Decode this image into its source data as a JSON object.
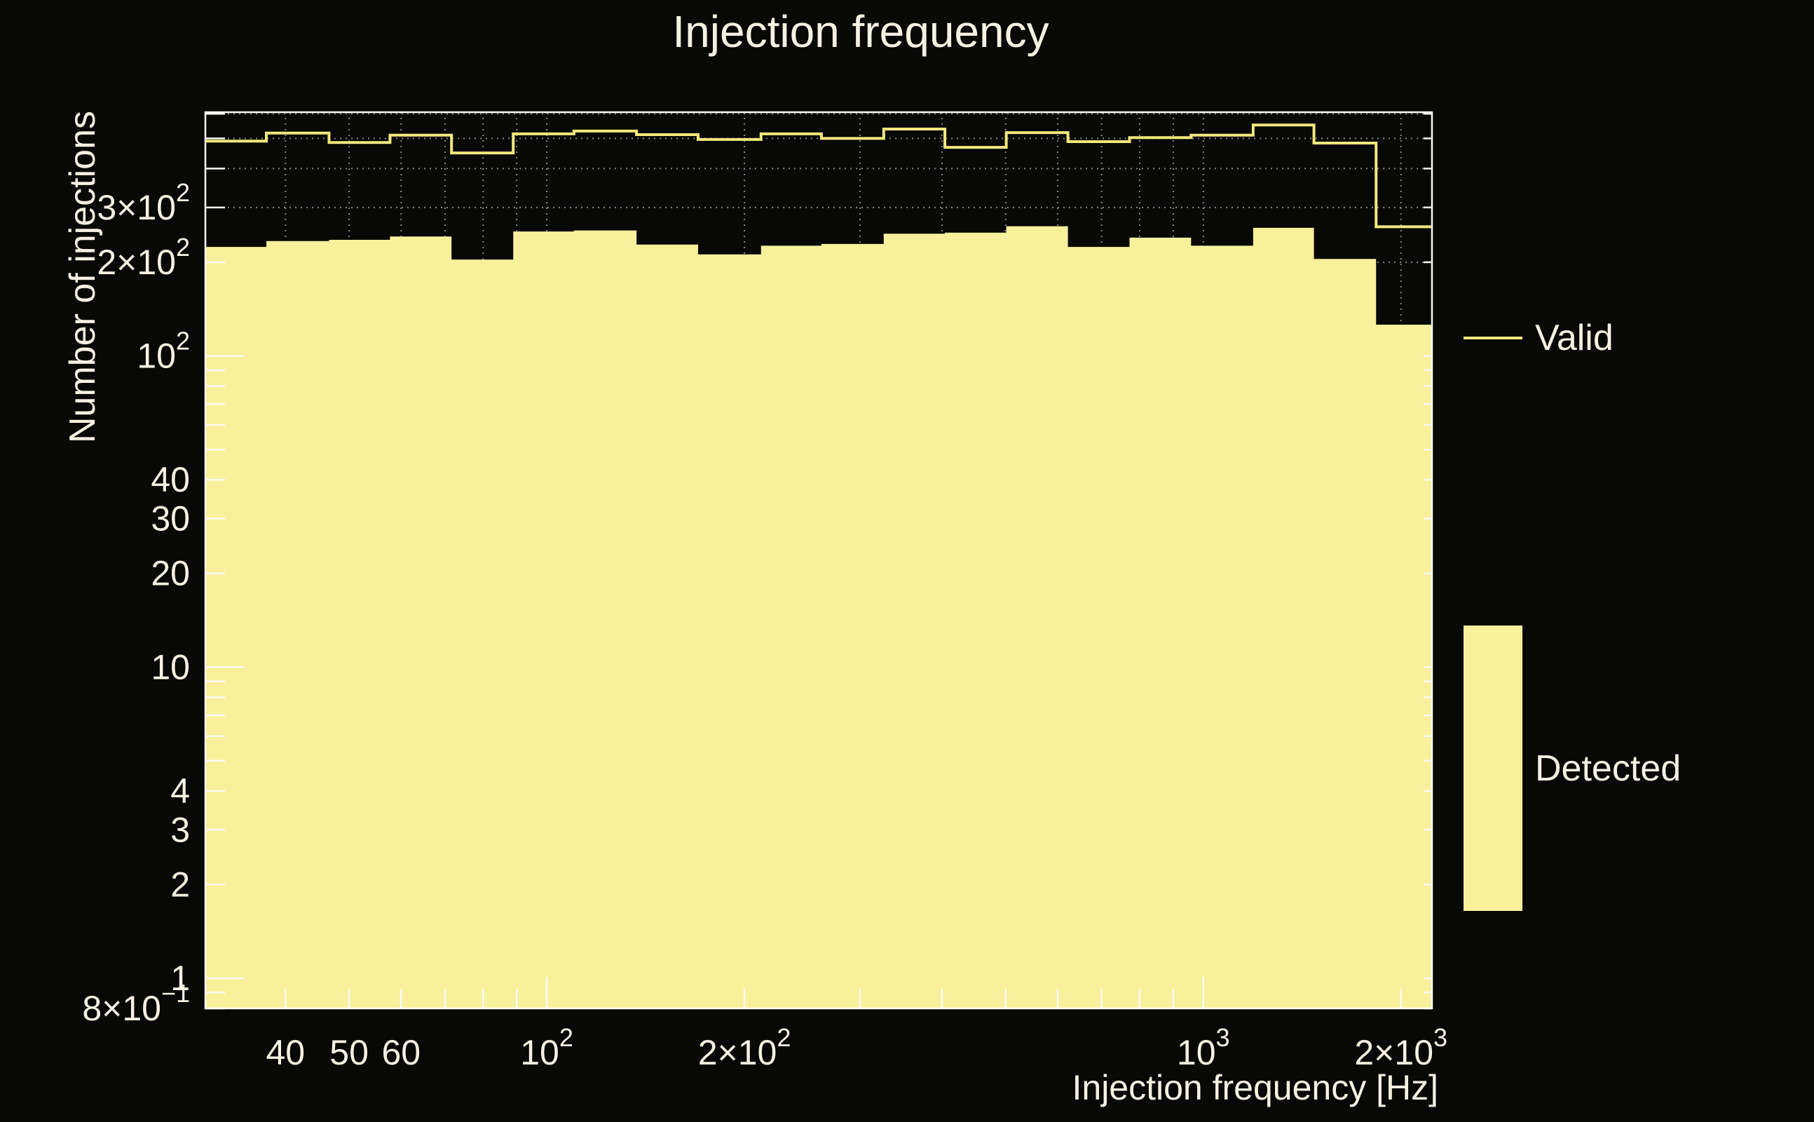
{
  "page": {
    "background_color": "#080806",
    "text_color": "#f6f2e2",
    "frame_color": "#fbfaf4",
    "grid_color": "#9c9c9c"
  },
  "chart_data": {
    "type": "bar",
    "subtype": "log-log step histograms",
    "title": "Injection frequency",
    "xlabel": "Injection frequency [Hz]",
    "ylabel": "Number of injections",
    "xscale": "log",
    "yscale": "log",
    "xlim": [
      30.2,
      2230
    ],
    "ylim": [
      0.8,
      607
    ],
    "grid": "dotted grid at all log tick positions, both axes",
    "legend_position": "right outside plot",
    "bin_edges_hz": [
      30.2,
      37.4,
      46.6,
      57.7,
      71.6,
      88.9,
      110,
      137,
      170,
      212,
      262,
      326,
      404,
      501,
      622,
      772,
      958,
      1191,
      1474,
      1833,
      2230
    ],
    "series": [
      {
        "name": "Valid",
        "style": "step-line",
        "color": "#f3e77c",
        "values": [
          490,
          520,
          485,
          512,
          449,
          517,
          528,
          514,
          496,
          517,
          500,
          536,
          468,
          522,
          488,
          503,
          512,
          552,
          483,
          260
        ]
      },
      {
        "name": "Detected",
        "style": "step-fill",
        "color": "#f9f09c",
        "values": [
          224,
          234,
          236,
          242,
          204,
          251,
          253,
          228,
          212,
          226,
          229,
          247,
          249,
          261,
          224,
          240,
          226,
          258,
          205,
          126
        ]
      }
    ],
    "x_ticks": [
      40,
      50,
      60,
      70,
      80,
      90,
      100,
      200,
      300,
      400,
      500,
      600,
      700,
      800,
      900,
      1000,
      2000
    ],
    "x_major_ticks": [
      100,
      1000
    ],
    "x_tick_labels": [
      {
        "v": 40,
        "t": "40",
        "s": ""
      },
      {
        "v": 50,
        "t": "50",
        "s": ""
      },
      {
        "v": 60,
        "t": "60",
        "s": ""
      },
      {
        "v": 100,
        "t": "10",
        "s": "2"
      },
      {
        "v": 200,
        "t": "2×10",
        "s": "2"
      },
      {
        "v": 1000,
        "t": "10",
        "s": "3"
      },
      {
        "v": 2000,
        "t": "2×10",
        "s": "3"
      }
    ],
    "y_ticks": [
      0.8,
      0.9,
      1,
      2,
      3,
      4,
      5,
      6,
      7,
      8,
      9,
      10,
      20,
      30,
      40,
      50,
      60,
      70,
      80,
      90,
      100,
      200,
      300,
      400,
      500,
      600
    ],
    "y_major_ticks": [
      1,
      10,
      100
    ],
    "y_tick_labels": [
      {
        "v": 300,
        "t": "3×10",
        "s": "2"
      },
      {
        "v": 200,
        "t": "2×10",
        "s": "2"
      },
      {
        "v": 100,
        "t": "10",
        "s": "2"
      },
      {
        "v": 40,
        "t": "40",
        "s": ""
      },
      {
        "v": 30,
        "t": "30",
        "s": ""
      },
      {
        "v": 20,
        "t": "20",
        "s": ""
      },
      {
        "v": 10,
        "t": "10",
        "s": ""
      },
      {
        "v": 4,
        "t": "4",
        "s": ""
      },
      {
        "v": 3,
        "t": "3",
        "s": ""
      },
      {
        "v": 2,
        "t": "2",
        "s": ""
      },
      {
        "v": 1,
        "t": "1",
        "s": ""
      },
      {
        "v": 0.8,
        "t": "8×10",
        "s": "−1"
      }
    ],
    "legend": [
      {
        "label": "Valid",
        "swatch": "line"
      },
      {
        "label": "Detected",
        "swatch": "filled-box"
      }
    ]
  }
}
